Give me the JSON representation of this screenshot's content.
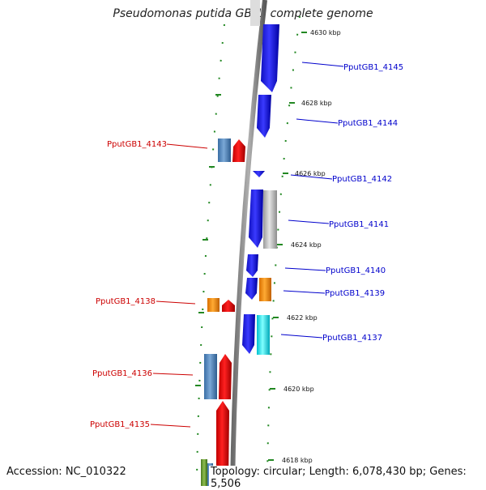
{
  "title": "Pseudomonas putida GB-1, complete genome",
  "footer": {
    "accession": "Accession: NC_010322",
    "topology": "Topology: circular; Length: 6,078,430 bp; Genes: 5,506"
  },
  "ticks": [
    {
      "label": "4630 kbp"
    },
    {
      "label": "4628 kbp"
    },
    {
      "label": "4626 kbp"
    },
    {
      "label": "4624 kbp"
    },
    {
      "label": "4622 kbp"
    },
    {
      "label": "4620 kbp"
    },
    {
      "label": "4618 kbp"
    }
  ],
  "genes": [
    {
      "label": "PputGB1_4145",
      "strand": "+",
      "color": "#0000cc"
    },
    {
      "label": "PputGB1_4144",
      "strand": "+",
      "color": "#0000cc"
    },
    {
      "label": "PputGB1_4143",
      "strand": "-",
      "color": "#cc0000"
    },
    {
      "label": "PputGB1_4142",
      "strand": "+",
      "color": "#0000cc"
    },
    {
      "label": "PputGB1_4141",
      "strand": "+",
      "color": "#0000cc"
    },
    {
      "label": "PputGB1_4140",
      "strand": "+",
      "color": "#0000cc"
    },
    {
      "label": "PputGB1_4139",
      "strand": "+",
      "color": "#0000cc"
    },
    {
      "label": "PputGB1_4138",
      "strand": "-",
      "color": "#cc0000"
    },
    {
      "label": "PputGB1_4137",
      "strand": "+",
      "color": "#0000cc"
    },
    {
      "label": "PputGB1_4136",
      "strand": "-",
      "color": "#cc0000"
    },
    {
      "label": "PputGB1_4135",
      "strand": "-",
      "color": "#cc0000"
    }
  ],
  "colors": {
    "cds_forward": "#0000ee",
    "cds_reverse": "#ee0000",
    "orf_steelblue": "#4a7fb5",
    "orf_orange": "#ff8c00",
    "orf_gray": "#bbbbbb",
    "orf_cyan": "#00e5f0",
    "tick_green": "#228822",
    "backbone": "#808080"
  }
}
